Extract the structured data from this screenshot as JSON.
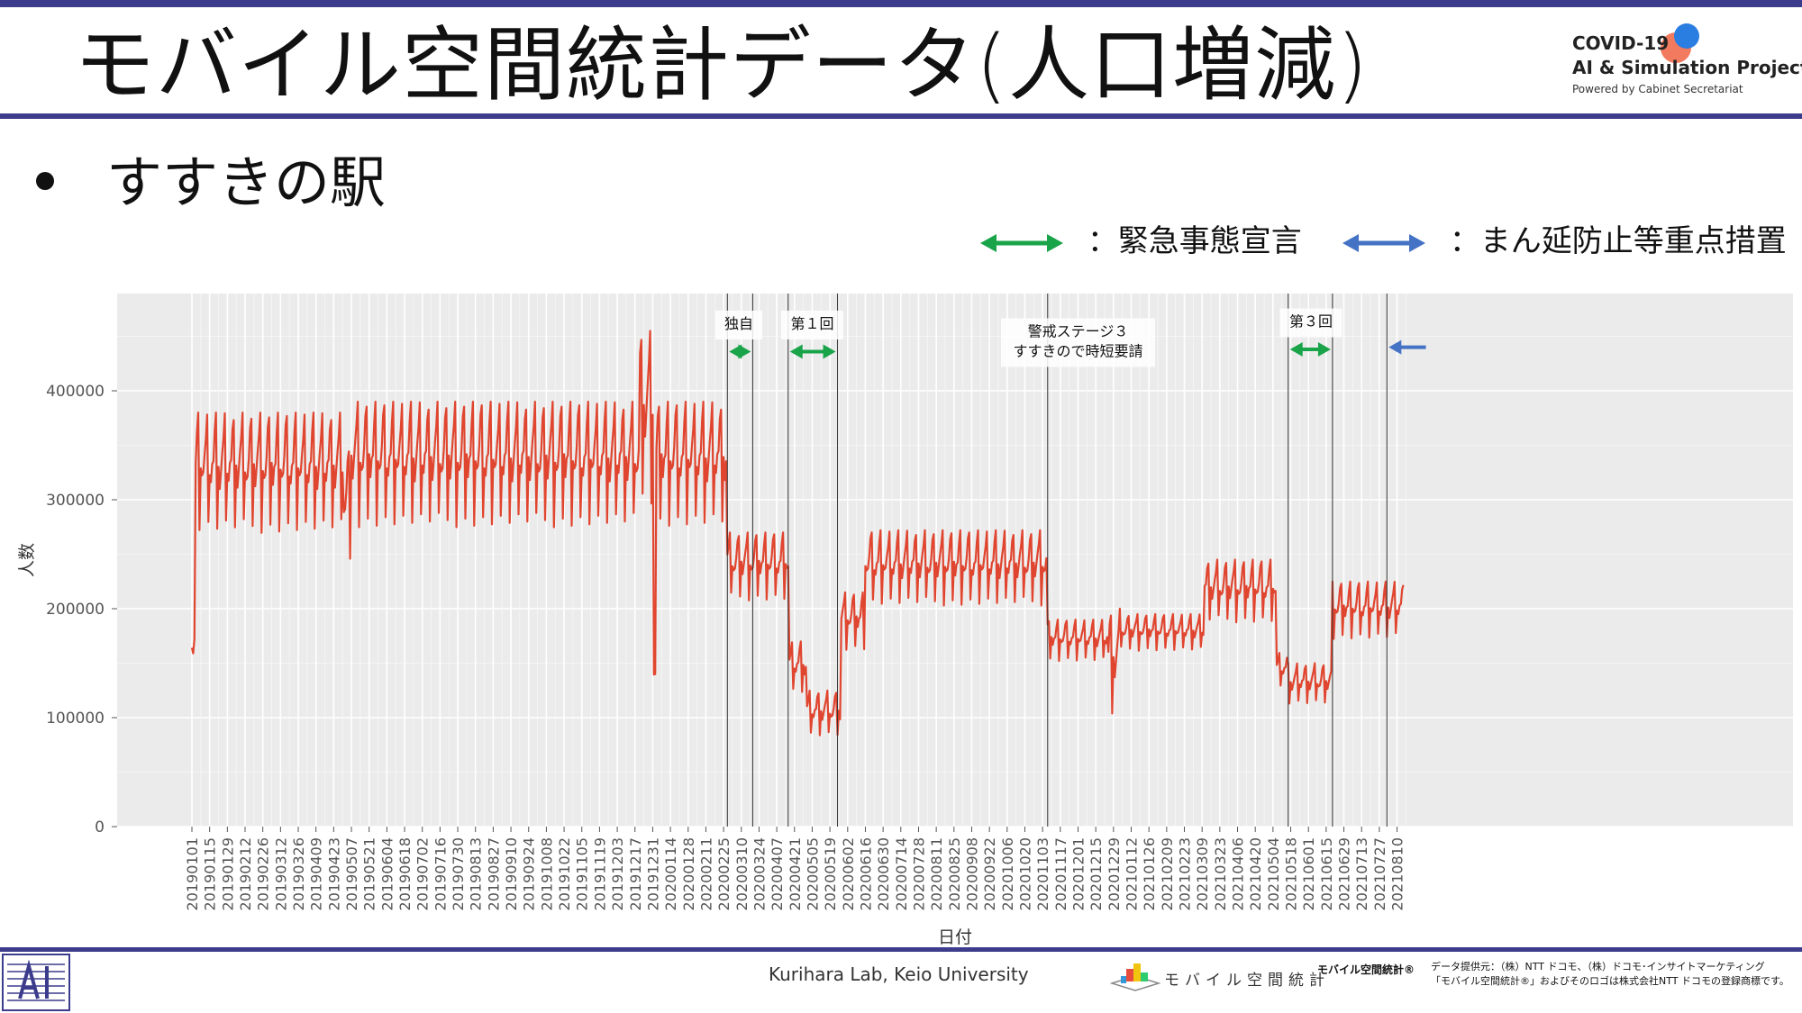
{
  "slide": {
    "title": "モバイル空間統計データ(人口増減)",
    "bullet": "すすきの駅"
  },
  "logo": {
    "line1": "COVID-19",
    "line2": "AI & Simulation Project",
    "line3": "Powered by Cabinet Secretariat"
  },
  "legend": {
    "green_label": "：緊急事態宣言",
    "blue_label": "：まん延防止等重点措置",
    "colors": {
      "green": "#1aa44a",
      "blue": "#4472c4"
    }
  },
  "footer": {
    "lab": "Kurihara Lab, Keio University",
    "mobile_logo_text": "モバイル空間統計",
    "mobile_brand": "モバイル空間統計®",
    "provider_line1": "データ提供元：（株）NTT ドコモ、（株）ドコモ･インサイトマーケティング",
    "provider_line2": "「モバイル空間統計®」およびそのロゴは株式会社NTT ドコモの登録商標です。"
  },
  "chart_data": {
    "type": "line",
    "xlabel": "日付",
    "ylabel": "人数",
    "ylim": [
      0,
      480000
    ],
    "yticks": [
      0,
      100000,
      200000,
      300000,
      400000
    ],
    "ytick_labels": [
      "0",
      "100000",
      "200000",
      "300000",
      "400000"
    ],
    "grid": true,
    "line_color": "#e0452f",
    "x_start": "2019-01-01",
    "x_end": "2021-08-15",
    "x_ticks": [
      "20190101",
      "20190115",
      "20190129",
      "20190212",
      "20190226",
      "20190312",
      "20190326",
      "20190409",
      "20190423",
      "20190507",
      "20190521",
      "20190604",
      "20190618",
      "20190702",
      "20190716",
      "20190730",
      "20190813",
      "20190827",
      "20190910",
      "20190924",
      "20191008",
      "20191022",
      "20191105",
      "20191119",
      "20191203",
      "20191217",
      "20191231",
      "20200114",
      "20200128",
      "20200211",
      "20200225",
      "20200310",
      "20200324",
      "20200407",
      "20200421",
      "20200505",
      "20200519",
      "20200602",
      "20200616",
      "20200630",
      "20200714",
      "20200728",
      "20200811",
      "20200825",
      "20200908",
      "20200922",
      "20201006",
      "20201020",
      "20201103",
      "20201117",
      "20201201",
      "20201215",
      "20201229",
      "20210112",
      "20210126",
      "20210209",
      "20210223",
      "20210309",
      "20210323",
      "20210406",
      "20210420",
      "20210504",
      "20210518",
      "20210601",
      "20210615",
      "20210629",
      "20210713",
      "20210727",
      "20210810"
    ],
    "phases": [
      {
        "start": "2019-01-01",
        "end": "2019-01-03",
        "low": 120000,
        "high": 210000
      },
      {
        "start": "2019-01-04",
        "end": "2019-04-30",
        "low": 265000,
        "high": 380000
      },
      {
        "start": "2019-05-01",
        "end": "2019-05-06",
        "low": 235000,
        "high": 350000
      },
      {
        "start": "2019-05-07",
        "end": "2019-12-20",
        "low": 270000,
        "high": 390000
      },
      {
        "start": "2019-12-21",
        "end": "2019-12-31",
        "low": 290000,
        "high": 455000
      },
      {
        "start": "2020-01-01",
        "end": "2020-01-02",
        "low": 130000,
        "high": 150000
      },
      {
        "start": "2020-01-03",
        "end": "2020-02-27",
        "low": 270000,
        "high": 390000
      },
      {
        "start": "2020-02-28",
        "end": "2020-04-16",
        "low": 205000,
        "high": 270000
      },
      {
        "start": "2020-04-17",
        "end": "2020-04-30",
        "low": 120000,
        "high": 170000
      },
      {
        "start": "2020-05-01",
        "end": "2020-05-27",
        "low": 80000,
        "high": 125000
      },
      {
        "start": "2020-05-28",
        "end": "2020-06-15",
        "low": 160000,
        "high": 215000
      },
      {
        "start": "2020-06-16",
        "end": "2020-11-06",
        "low": 200000,
        "high": 272000
      },
      {
        "start": "2020-11-07",
        "end": "2020-12-24",
        "low": 150000,
        "high": 190000
      },
      {
        "start": "2020-12-25",
        "end": "2021-01-03",
        "low": 95000,
        "high": 200000
      },
      {
        "start": "2021-01-04",
        "end": "2021-03-10",
        "low": 160000,
        "high": 195000
      },
      {
        "start": "2021-03-11",
        "end": "2021-05-06",
        "low": 185000,
        "high": 245000
      },
      {
        "start": "2021-05-07",
        "end": "2021-05-15",
        "low": 125000,
        "high": 160000
      },
      {
        "start": "2021-05-16",
        "end": "2021-06-19",
        "low": 110000,
        "high": 150000
      },
      {
        "start": "2021-06-20",
        "end": "2021-08-15",
        "low": 170000,
        "high": 225000
      }
    ],
    "event_lines": [
      "2020-02-28",
      "2020-03-19",
      "2020-04-16",
      "2020-05-25",
      "2020-11-07",
      "2021-05-16",
      "2021-06-20",
      "2021-08-02"
    ],
    "annotations": [
      {
        "label": "独自",
        "date": "2020-03-08",
        "color": "green",
        "arrow_start": "2020-02-28",
        "arrow_end": "2020-03-19",
        "y_label": 462000,
        "y_arrow": 436000
      },
      {
        "label": "第１回",
        "date": "2020-05-05",
        "color": "green",
        "arrow_start": "2020-04-16",
        "arrow_end": "2020-05-25",
        "y_label": 462000,
        "y_arrow": 436000
      },
      {
        "label": "警戒ステージ３",
        "label2": "すすきので時短要請",
        "date": "2020-12-01",
        "color": "none",
        "y_label": 455000
      },
      {
        "label": "第３回",
        "date": "2021-06-03",
        "color": "green",
        "arrow_start": "2021-05-16",
        "arrow_end": "2021-06-20",
        "y_label": 464000,
        "y_arrow": 438000
      },
      {
        "label": "",
        "color": "blue",
        "arrow_start": "2021-08-02",
        "arrow_end": "2021-08-20",
        "y_arrow": 440000
      }
    ]
  }
}
